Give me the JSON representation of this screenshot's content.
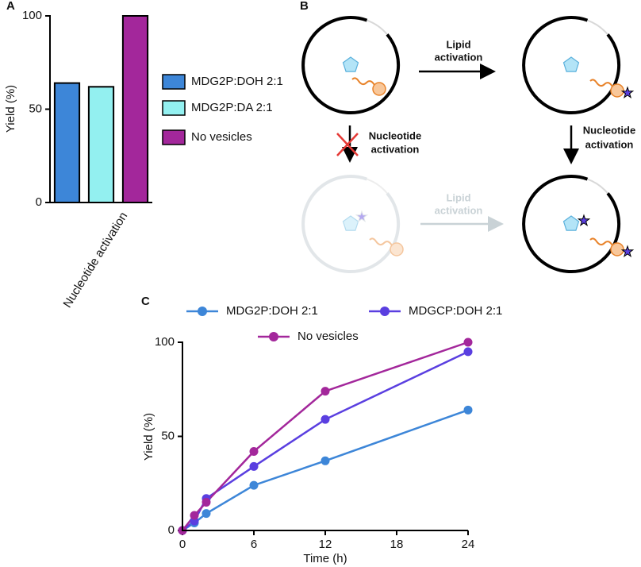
{
  "chart_data": [
    {
      "type": "bar",
      "label": "A",
      "ylabel": "Yield (%)",
      "categories": [
        "Nucleotide activation"
      ],
      "series": [
        {
          "name": "MDG2P:DOH 2:1",
          "color": "#3d86d8",
          "values": [
            64
          ]
        },
        {
          "name": "MDG2P:DA 2:1",
          "color": "#93f0f0",
          "values": [
            62
          ]
        },
        {
          "name": "No vesicles",
          "color": "#a3279b",
          "values": [
            100
          ]
        }
      ],
      "ylim": [
        0,
        100
      ],
      "yticks": [
        0,
        50,
        100
      ]
    },
    {
      "type": "line",
      "label": "C",
      "xlabel": "Time (h)",
      "ylabel": "Yield (%)",
      "x": [
        0,
        1,
        2,
        6,
        12,
        24
      ],
      "series": [
        {
          "name": "MDG2P:DOH 2:1",
          "color": "#3d86d8",
          "values": [
            0,
            4,
            9,
            24,
            37,
            64
          ]
        },
        {
          "name": "MDGCP:DOH 2:1",
          "color": "#5a3fe0",
          "values": [
            0,
            5,
            17,
            34,
            59,
            95
          ]
        },
        {
          "name": "No vesicles",
          "color": "#a3279b",
          "values": [
            0,
            8,
            15,
            42,
            74,
            100
          ]
        }
      ],
      "xlim": [
        0,
        24
      ],
      "xticks": [
        0,
        6,
        12,
        18,
        24
      ],
      "ylim": [
        0,
        100
      ],
      "yticks": [
        0,
        50,
        100
      ]
    }
  ],
  "diagram": {
    "label": "B",
    "lipid_top": [
      "Lipid",
      "activation"
    ],
    "nucleotide_left": [
      "Nucleotide",
      "activation"
    ],
    "nucleotide_right": [
      "Nucleotide",
      "activation"
    ],
    "lipid_bottom": [
      "Lipid",
      "activation"
    ]
  }
}
